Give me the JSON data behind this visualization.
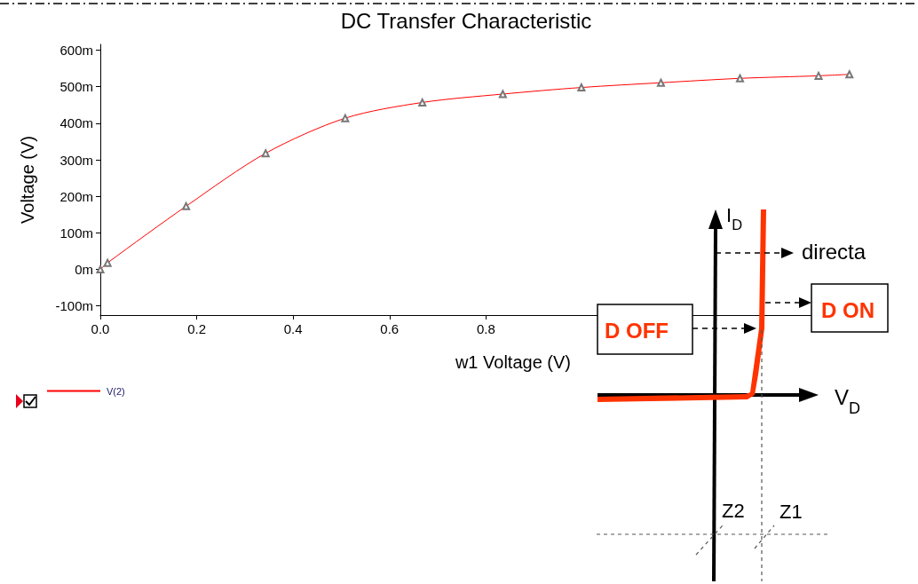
{
  "chart_data": {
    "type": "line",
    "title": "DC Transfer Characteristic",
    "xlabel": "w1 Voltage (V)",
    "ylabel": "Voltage (V)",
    "x": [
      0,
      0.015,
      0.178,
      0.343,
      0.508,
      0.668,
      0.835,
      0.998,
      1.163,
      1.327,
      1.49,
      1.554
    ],
    "series": [
      {
        "name": "V(2)",
        "color": "#ff0000",
        "values": [
          0,
          18,
          173,
          318,
          414,
          457,
          480,
          498,
          511,
          523,
          530,
          534
        ]
      }
    ],
    "xlim": [
      0,
      1.56
    ],
    "xticks": [
      {
        "value": 0,
        "label": "0.0"
      },
      0.2,
      0.4,
      0.6,
      0.8
    ],
    "ylim": [
      -125,
      616
    ],
    "yticks": [
      {
        "value": -100,
        "label": "-100m"
      },
      {
        "value": 0,
        "label": "0m"
      },
      {
        "value": 100,
        "label": "100m"
      },
      {
        "value": 200,
        "label": "200m"
      },
      {
        "value": 300,
        "label": "300m"
      },
      {
        "value": 400,
        "label": "400m"
      },
      {
        "value": 500,
        "label": "500m"
      },
      {
        "value": 600,
        "label": "600m"
      }
    ],
    "marker": "triangle",
    "grid": false,
    "legend": "bottom left",
    "annotations": [
      "I$_{D}$",
      "directa",
      "D ON",
      "D OFF",
      "V$_{D}$",
      "Z2",
      "Z1"
    ]
  }
}
